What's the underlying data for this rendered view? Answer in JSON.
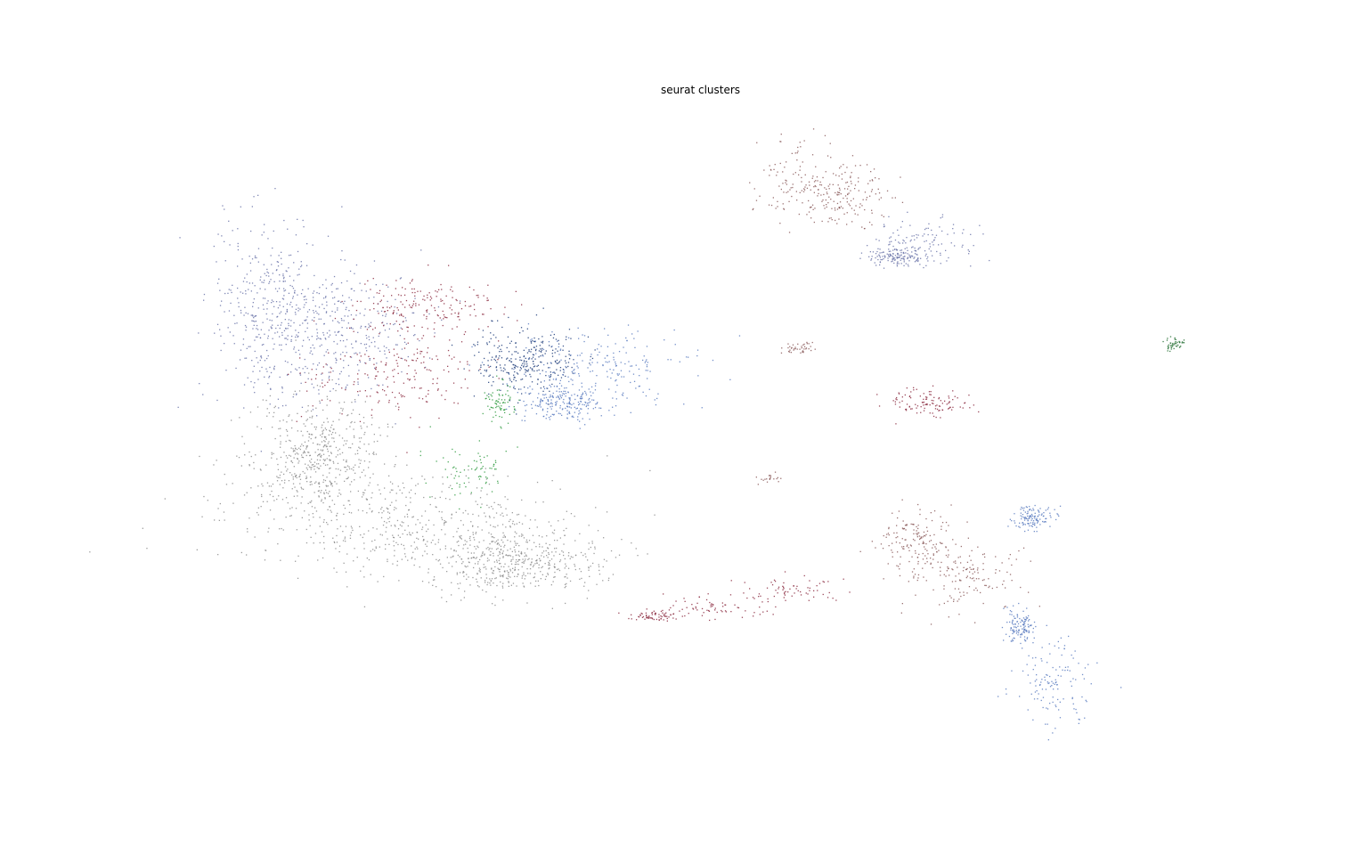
{
  "chart_data": {
    "type": "scatter",
    "title": "seurat clusters",
    "xlabel": "",
    "ylabel": "",
    "axes_visible": false,
    "grid": false,
    "legend": "none",
    "colors": {
      "gray": "#8c8c8c",
      "maroon": "#8b2a3f",
      "navy": "#1f3d7a",
      "blue": "#5a7bc0",
      "slate": "#6a73a8",
      "green": "#2e9a3e",
      "darkgreen": "#1e6b2e",
      "brown": "#8a5a5a"
    },
    "series": [
      {
        "cluster": "gray",
        "color": "gray",
        "n": 1500,
        "blobs": [
          [
            0.295,
            0.61,
            0.12,
            0.055
          ],
          [
            0.23,
            0.53,
            0.045,
            0.06
          ],
          [
            0.375,
            0.655,
            0.06,
            0.035
          ]
        ]
      },
      {
        "cluster": "gray-upper",
        "color": "slate",
        "n": 700,
        "blobs": [
          [
            0.195,
            0.36,
            0.035,
            0.1
          ],
          [
            0.245,
            0.39,
            0.05,
            0.07
          ]
        ]
      },
      {
        "cluster": "maroon",
        "color": "maroon",
        "n": 380,
        "blobs": [
          [
            0.285,
            0.44,
            0.06,
            0.045
          ],
          [
            0.31,
            0.36,
            0.05,
            0.03
          ]
        ]
      },
      {
        "cluster": "navy",
        "color": "navy",
        "n": 300,
        "blobs": [
          [
            0.385,
            0.42,
            0.035,
            0.035
          ]
        ]
      },
      {
        "cluster": "blue",
        "color": "blue",
        "n": 420,
        "blobs": [
          [
            0.435,
            0.43,
            0.06,
            0.04
          ],
          [
            0.41,
            0.47,
            0.03,
            0.02
          ]
        ]
      },
      {
        "cluster": "green",
        "color": "green",
        "n": 150,
        "blobs": [
          [
            0.345,
            0.55,
            0.025,
            0.035
          ],
          [
            0.365,
            0.47,
            0.01,
            0.02
          ]
        ]
      },
      {
        "cluster": "top-right-brown",
        "color": "brown",
        "n": 260,
        "blobs": [
          [
            0.585,
            0.21,
            0.03,
            0.045
          ],
          [
            0.62,
            0.23,
            0.03,
            0.03
          ]
        ]
      },
      {
        "cluster": "top-right-blue",
        "color": "slate",
        "n": 250,
        "blobs": [
          [
            0.675,
            0.285,
            0.035,
            0.025
          ],
          [
            0.655,
            0.3,
            0.02,
            0.01
          ]
        ]
      },
      {
        "cluster": "streak-1",
        "color": "brown",
        "n": 40,
        "blobs": [
          [
            0.583,
            0.407,
            0.012,
            0.006
          ]
        ]
      },
      {
        "cluster": "streak-2",
        "color": "maroon",
        "n": 110,
        "blobs": [
          [
            0.675,
            0.47,
            0.03,
            0.015
          ]
        ]
      },
      {
        "cluster": "streak-3",
        "color": "brown",
        "n": 20,
        "blobs": [
          [
            0.562,
            0.558,
            0.01,
            0.005
          ]
        ]
      },
      {
        "cluster": "far-right-green",
        "color": "darkgreen",
        "n": 45,
        "blobs": [
          [
            0.857,
            0.401,
            0.007,
            0.006
          ]
        ]
      },
      {
        "cluster": "bottom-arc",
        "color": "maroon",
        "n": 200,
        "blobs": [
          [
            0.52,
            0.71,
            0.04,
            0.012
          ],
          [
            0.58,
            0.69,
            0.035,
            0.012
          ],
          [
            0.48,
            0.72,
            0.02,
            0.006
          ]
        ]
      },
      {
        "cluster": "lower-right-mixed",
        "color": "brown",
        "n": 300,
        "blobs": [
          [
            0.705,
            0.675,
            0.04,
            0.035
          ],
          [
            0.67,
            0.63,
            0.025,
            0.03
          ]
        ]
      },
      {
        "cluster": "lower-right-blue",
        "color": "blue",
        "n": 380,
        "blobs": [
          [
            0.77,
            0.795,
            0.025,
            0.045
          ],
          [
            0.745,
            0.73,
            0.01,
            0.02
          ],
          [
            0.755,
            0.605,
            0.015,
            0.012
          ]
        ]
      }
    ]
  }
}
